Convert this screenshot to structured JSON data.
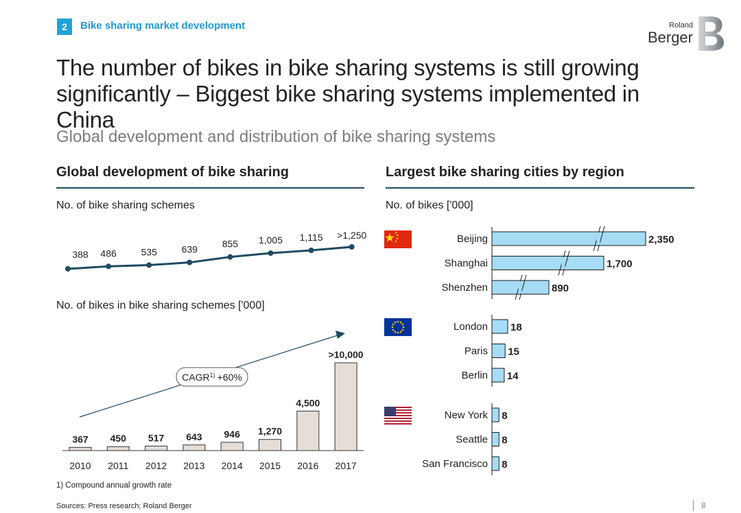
{
  "section": {
    "number": "2",
    "title": "Bike sharing market development"
  },
  "logo": {
    "small": "Roland",
    "big": "Berger"
  },
  "headline": "The number of bikes in bike sharing systems is still growing significantly – Biggest bike sharing systems implemented in China",
  "subheadline": "Global development and distribution of bike sharing systems",
  "left_panel": {
    "title": "Global development of bike sharing",
    "schemes_label": "No. of bike sharing schemes",
    "bikes_label": "No. of bikes in bike sharing schemes ['000]",
    "cagr_prefix": "CAGR",
    "cagr_sup": "1)",
    "cagr_value": "+60%"
  },
  "right_panel": {
    "title": "Largest bike sharing cities by region",
    "bikes_label": "No. of bikes ['000]"
  },
  "footnote": "1) Compound annual growth rate",
  "sources": "Sources: Press research; Roland Berger",
  "page_number": "8",
  "colors": {
    "accent": "#1fa3d6",
    "navy": "#1f4b63",
    "bar_beige": "#e5ddd6",
    "bar_blue": "#a6dcf6"
  },
  "chart_data": [
    {
      "type": "line",
      "title": "No. of bike sharing schemes",
      "x": [
        "2010",
        "2011",
        "2012",
        "2013",
        "2014",
        "2015",
        "2016",
        "2017"
      ],
      "values": [
        388,
        486,
        535,
        639,
        855,
        1005,
        1115,
        1250
      ],
      "labels": [
        "388",
        "486",
        "535",
        "639",
        "855",
        "1,005",
        "1,115",
        ">1,250"
      ]
    },
    {
      "type": "bar",
      "title": "No. of bikes in bike sharing schemes ['000]",
      "categories": [
        "2010",
        "2011",
        "2012",
        "2013",
        "2014",
        "2015",
        "2016",
        "2017"
      ],
      "values": [
        367,
        450,
        517,
        643,
        946,
        1270,
        4500,
        10000
      ],
      "labels": [
        "367",
        "450",
        "517",
        "643",
        "946",
        "1,270",
        "4,500",
        ">10,000"
      ],
      "annotation": "CAGR 1) +60%"
    },
    {
      "type": "bar",
      "orientation": "horizontal",
      "title": "Largest bike sharing cities by region",
      "unit": "No. of bikes ['000]",
      "groups": [
        {
          "region": "China",
          "flag": "china-flag",
          "cities": [
            "Beijing",
            "Shanghai",
            "Shenzhen"
          ],
          "values": [
            2350,
            1700,
            890
          ],
          "labels": [
            "2,350",
            "1,700",
            "890"
          ],
          "broken_axis": true
        },
        {
          "region": "Europe",
          "flag": "eu-flag",
          "cities": [
            "London",
            "Paris",
            "Berlin"
          ],
          "values": [
            18,
            15,
            14
          ],
          "labels": [
            "18",
            "15",
            "14"
          ]
        },
        {
          "region": "USA",
          "flag": "us-flag",
          "cities": [
            "New York",
            "Seattle",
            "San Francisco"
          ],
          "values": [
            8,
            8,
            8
          ],
          "labels": [
            "8",
            "8",
            "8"
          ]
        }
      ]
    }
  ]
}
